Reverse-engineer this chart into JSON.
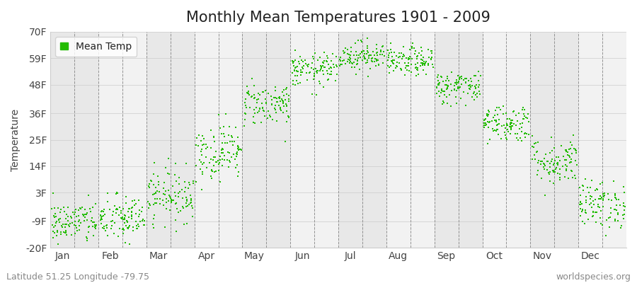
{
  "title": "Monthly Mean Temperatures 1901 - 2009",
  "ylabel": "Temperature",
  "yticks": [
    -20,
    -9,
    3,
    14,
    25,
    36,
    48,
    59,
    70
  ],
  "ytick_labels": [
    "-20F",
    "-9F",
    "3F",
    "14F",
    "25F",
    "36F",
    "48F",
    "59F",
    "70F"
  ],
  "ylim": [
    -20,
    70
  ],
  "months": [
    "Jan",
    "Feb",
    "Mar",
    "Apr",
    "May",
    "Jun",
    "Jul",
    "Aug",
    "Sep",
    "Oct",
    "Nov",
    "Dec"
  ],
  "month_means_F": [
    -9.5,
    -8.0,
    2.0,
    20.0,
    40.0,
    54.0,
    60.0,
    57.5,
    47.0,
    32.0,
    16.0,
    -2.0
  ],
  "month_stds_F": [
    4.5,
    5.0,
    5.5,
    6.0,
    4.5,
    3.5,
    3.0,
    3.0,
    3.5,
    4.0,
    5.0,
    5.0
  ],
  "n_years": 109,
  "dot_color": "#22bb00",
  "dot_size": 3,
  "bg_color_dark": "#e8e8e8",
  "bg_color_light": "#f2f2f2",
  "title_fontsize": 15,
  "axis_fontsize": 10,
  "legend_label": "Mean Temp",
  "footer_left": "Latitude 51.25 Longitude -79.75",
  "footer_right": "worldspecies.org",
  "footer_fontsize": 9,
  "dash_color": "#888888",
  "spine_color": "#cccccc",
  "tick_label_color": "#444444",
  "footer_color": "#888888"
}
